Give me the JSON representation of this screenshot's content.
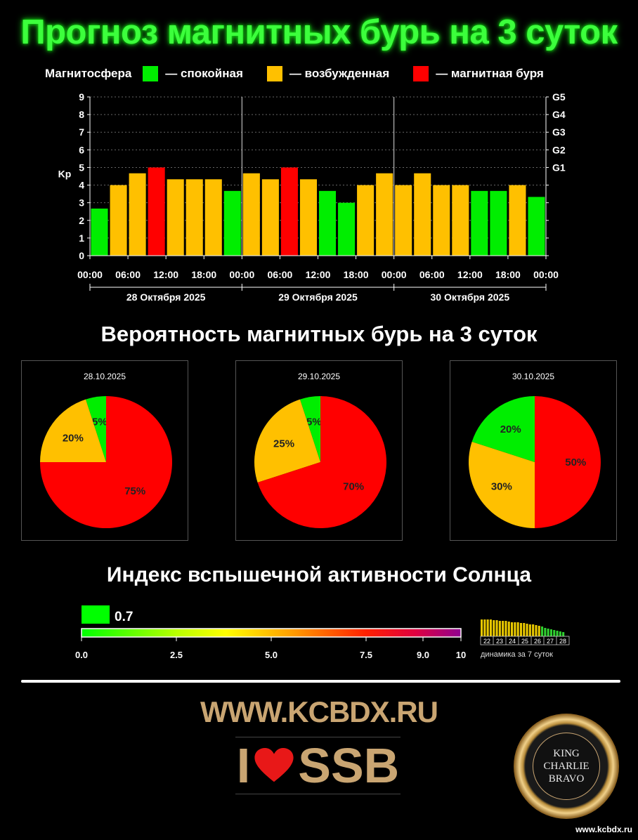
{
  "title": "Прогноз магнитных бурь на 3 суток",
  "legend": {
    "label": "Магнитосфера",
    "items": [
      {
        "text": "— спокойная",
        "color": "#00ee00"
      },
      {
        "text": "— возбужденная",
        "color": "#ffc000"
      },
      {
        "text": "— магнитная буря",
        "color": "#ff0000"
      }
    ]
  },
  "chart_data": [
    {
      "type": "bar",
      "ylabel": "Kp",
      "ylim": [
        0,
        9
      ],
      "yticks": [
        "0",
        "1",
        "2",
        "3",
        "4",
        "5",
        "6",
        "7",
        "8",
        "9"
      ],
      "right_ticks": [
        {
          "value": 5,
          "label": "G1"
        },
        {
          "value": 6,
          "label": "G2"
        },
        {
          "value": 7,
          "label": "G3"
        },
        {
          "value": 8,
          "label": "G4"
        },
        {
          "value": 9,
          "label": "G5"
        }
      ],
      "xtick_labels": [
        "00:00",
        "06:00",
        "12:00",
        "18:00",
        "00:00",
        "06:00",
        "12:00",
        "18:00",
        "00:00",
        "06:00",
        "12:00",
        "18:00",
        "00:00"
      ],
      "day_labels": [
        "28 Октября 2025",
        "29 Октября 2025",
        "30 Октября 2025"
      ],
      "values": [
        2.67,
        4.0,
        4.67,
        5.0,
        4.33,
        4.33,
        4.33,
        3.67,
        4.67,
        4.33,
        5.0,
        4.33,
        3.67,
        3.0,
        4.0,
        4.67,
        4.0,
        4.67,
        4.0,
        4.0,
        3.67,
        3.67,
        4.0,
        3.33
      ],
      "colors": [
        "#00ee00",
        "#ffc000",
        "#ffc000",
        "#ff0000",
        "#ffc000",
        "#ffc000",
        "#ffc000",
        "#00ee00",
        "#ffc000",
        "#ffc000",
        "#ff0000",
        "#ffc000",
        "#00ee00",
        "#00ee00",
        "#ffc000",
        "#ffc000",
        "#ffc000",
        "#ffc000",
        "#ffc000",
        "#ffc000",
        "#00ee00",
        "#00ee00",
        "#ffc000",
        "#00ee00"
      ],
      "grid": "dotted horizontal"
    },
    {
      "type": "pie",
      "title": "28.10.2025",
      "slices": [
        {
          "label": "5%",
          "value": 5,
          "color": "#00ee00"
        },
        {
          "label": "20%",
          "value": 20,
          "color": "#ffc000"
        },
        {
          "label": "75%",
          "value": 75,
          "color": "#ff0000"
        }
      ]
    },
    {
      "type": "pie",
      "title": "29.10.2025",
      "slices": [
        {
          "label": "5%",
          "value": 5,
          "color": "#00ee00"
        },
        {
          "label": "25%",
          "value": 25,
          "color": "#ffc000"
        },
        {
          "label": "70%",
          "value": 70,
          "color": "#ff0000"
        }
      ]
    },
    {
      "type": "pie",
      "title": "30.10.2025",
      "slices": [
        {
          "label": "20%",
          "value": 20,
          "color": "#00ee00"
        },
        {
          "label": "30%",
          "value": 30,
          "color": "#ffc000"
        },
        {
          "label": "50%",
          "value": 50,
          "color": "#ff0000"
        }
      ]
    }
  ],
  "prob_title": "Вероятность магнитных бурь на 3 суток",
  "flare": {
    "title": "Индекс вспышечной активности Солнца",
    "value": 0.7,
    "value_label": "0.7",
    "indicator_color": "#00ff00",
    "scale_ticks": [
      "0.0",
      "2.5",
      "5.0",
      "7.5",
      "9.0",
      "10"
    ],
    "scale_tick_values": [
      0,
      2.5,
      5.0,
      7.5,
      9.0,
      10
    ],
    "scale_max": 10,
    "dynamics_label": "динамика за 7 суток",
    "dynamics_days": [
      "22",
      "23",
      "24",
      "25",
      "26",
      "27",
      "28"
    ]
  },
  "footer": {
    "site": "WWW.KCBDX.RU",
    "ssb_left": "I",
    "ssb_right": "SSB",
    "badge_lines": [
      "KING",
      "CHARLIE",
      "BRAVO"
    ],
    "site_small": "www.kcbdx.ru"
  }
}
